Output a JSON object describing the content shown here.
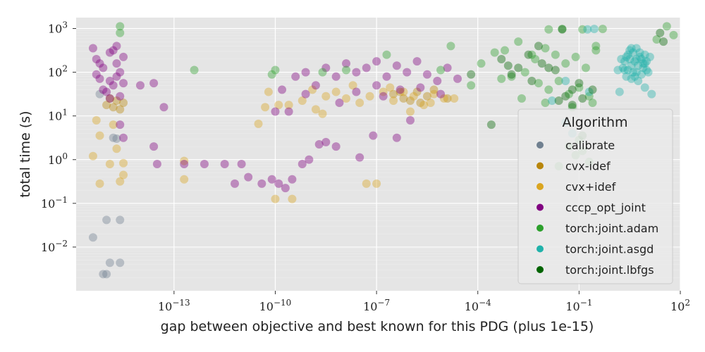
{
  "chart_data": {
    "type": "scatter",
    "xlabel": "gap between objective and best known for this PDG (plus 1e-15)",
    "ylabel": "total time (s)",
    "xscale": "log",
    "yscale": "log",
    "xlim_log10": [
      -15.9,
      2.0
    ],
    "ylim_log10": [
      -3.0,
      3.25
    ],
    "x_ticks": [
      {
        "log": -13,
        "label": "10",
        "exp": "−13"
      },
      {
        "log": -10,
        "label": "10",
        "exp": "−10"
      },
      {
        "log": -7,
        "label": "10",
        "exp": "−7"
      },
      {
        "log": -4,
        "label": "10",
        "exp": "−4"
      },
      {
        "log": -1,
        "label": "10",
        "exp": "−1"
      },
      {
        "log": 2,
        "label": "10",
        "exp": "2"
      }
    ],
    "y_ticks": [
      {
        "log": 3,
        "label": "10",
        "exp": "3"
      },
      {
        "log": 2,
        "label": "10",
        "exp": "2"
      },
      {
        "log": 1,
        "label": "10",
        "exp": "1"
      },
      {
        "log": 0,
        "label": "10",
        "exp": "0"
      },
      {
        "log": -1,
        "label": "10",
        "exp": "−1"
      },
      {
        "log": -2,
        "label": "10",
        "exp": "−2"
      }
    ],
    "grid": true,
    "background": "#e5e5e5",
    "legend": {
      "title": "Algorithm",
      "placement": "lower right",
      "entries": [
        {
          "name": "calibrate",
          "color": "#708090"
        },
        {
          "name": "cvx-idef",
          "color": "#b8860b"
        },
        {
          "name": "cvx+idef",
          "color": "#daa520"
        },
        {
          "name": "cccp_opt_joint",
          "color": "#800080"
        },
        {
          "name": "torch:joint.adam",
          "color": "#2ca02c"
        },
        {
          "name": "torch:joint.asgd",
          "color": "#20b2aa"
        },
        {
          "name": "torch:joint.lbfgs",
          "color": "#006400"
        }
      ]
    },
    "series": [
      {
        "name": "calibrate",
        "color": "#708090",
        "points_log10": [
          [
            -15.0,
            -2.62
          ],
          [
            -15.1,
            -2.62
          ],
          [
            -14.9,
            -2.36
          ],
          [
            -14.6,
            -2.36
          ],
          [
            -15.0,
            -1.38
          ],
          [
            -14.6,
            -1.38
          ],
          [
            -15.4,
            -1.78
          ],
          [
            -14.8,
            0.5
          ],
          [
            -14.7,
            0.48
          ],
          [
            -15.2,
            1.5
          ]
        ]
      },
      {
        "name": "cvx-idef",
        "color": "#b8860b",
        "points_log10": [
          [
            -14.8,
            1.2
          ],
          [
            -14.5,
            1.3
          ],
          [
            -15.0,
            1.25
          ],
          [
            -14.7,
            1.35
          ],
          [
            -14.9,
            1.4
          ],
          [
            -14.6,
            1.15
          ],
          [
            -6.5,
            1.5
          ],
          [
            -6.2,
            1.4
          ],
          [
            -5.8,
            1.55
          ],
          [
            -5.5,
            1.45
          ],
          [
            -6.0,
            1.35
          ],
          [
            -5.3,
            1.6
          ],
          [
            -4.9,
            1.4
          ],
          [
            -5.7,
            1.3
          ],
          [
            -6.3,
            1.55
          ]
        ]
      },
      {
        "name": "cvx+idef",
        "color": "#daa520",
        "points_log10": [
          [
            -15.4,
            0.08
          ],
          [
            -15.2,
            -0.55
          ],
          [
            -14.6,
            -0.5
          ],
          [
            -14.5,
            -0.35
          ],
          [
            -14.7,
            0.25
          ],
          [
            -14.8,
            0.8
          ],
          [
            -15.2,
            0.55
          ],
          [
            -14.9,
            -0.1
          ],
          [
            -14.5,
            -0.08
          ],
          [
            -15.3,
            0.9
          ],
          [
            -12.7,
            -0.03
          ],
          [
            -12.7,
            -0.45
          ],
          [
            -10.0,
            -0.9
          ],
          [
            -9.5,
            -0.9
          ],
          [
            -10.5,
            0.82
          ],
          [
            -10.2,
            1.55
          ],
          [
            -9.6,
            1.25
          ],
          [
            -9.2,
            1.35
          ],
          [
            -8.8,
            1.15
          ],
          [
            -8.5,
            1.45
          ],
          [
            -8.2,
            1.55
          ],
          [
            -7.9,
            1.4
          ],
          [
            -7.5,
            1.3
          ],
          [
            -7.2,
            1.45
          ],
          [
            -6.8,
            1.55
          ],
          [
            -6.5,
            1.35
          ],
          [
            -6.2,
            1.55
          ],
          [
            -5.9,
            1.45
          ],
          [
            -5.6,
            1.25
          ],
          [
            -5.3,
            1.5
          ],
          [
            -5.0,
            1.4
          ],
          [
            -7.3,
            -0.55
          ],
          [
            -7.0,
            -0.55
          ],
          [
            -9.9,
            1.25
          ],
          [
            -10.3,
            1.2
          ],
          [
            -8.6,
            1.05
          ],
          [
            -6.0,
            1.1
          ],
          [
            -5.4,
            1.3
          ],
          [
            -4.7,
            1.4
          ],
          [
            -7.7,
            1.7
          ],
          [
            -8.9,
            1.6
          ],
          [
            -6.6,
            1.65
          ]
        ]
      },
      {
        "name": "cccp_opt_joint",
        "color": "#800080",
        "points_log10": [
          [
            -15.3,
            2.3
          ],
          [
            -15.1,
            2.1
          ],
          [
            -14.9,
            2.45
          ],
          [
            -14.7,
            2.2
          ],
          [
            -15.2,
            1.85
          ],
          [
            -14.8,
            1.7
          ],
          [
            -14.6,
            2.0
          ],
          [
            -15.0,
            1.55
          ],
          [
            -14.5,
            2.35
          ],
          [
            -15.4,
            2.55
          ],
          [
            -14.9,
            1.4
          ],
          [
            -14.7,
            2.6
          ],
          [
            -15.1,
            1.6
          ],
          [
            -14.6,
            1.45
          ],
          [
            -14.8,
            2.5
          ],
          [
            -15.3,
            1.95
          ],
          [
            -14.9,
            1.8
          ],
          [
            -14.5,
            1.75
          ],
          [
            -15.2,
            2.2
          ],
          [
            -14.7,
            1.9
          ],
          [
            -14.6,
            0.8
          ],
          [
            -14.5,
            0.5
          ],
          [
            -14.0,
            1.7
          ],
          [
            -13.6,
            1.75
          ],
          [
            -13.6,
            0.3
          ],
          [
            -13.3,
            1.2
          ],
          [
            -13.5,
            -0.1
          ],
          [
            -12.7,
            -0.1
          ],
          [
            -12.1,
            -0.1
          ],
          [
            -11.5,
            -0.1
          ],
          [
            -11.0,
            -0.1
          ],
          [
            -11.2,
            -0.55
          ],
          [
            -10.8,
            -0.4
          ],
          [
            -10.4,
            -0.55
          ],
          [
            -10.1,
            -0.45
          ],
          [
            -9.9,
            -0.55
          ],
          [
            -9.7,
            -0.65
          ],
          [
            -9.5,
            -0.45
          ],
          [
            -9.2,
            -0.1
          ],
          [
            -9.0,
            0.0
          ],
          [
            -8.7,
            0.35
          ],
          [
            -8.5,
            0.4
          ],
          [
            -9.8,
            1.6
          ],
          [
            -10.0,
            1.1
          ],
          [
            -9.6,
            1.1
          ],
          [
            -9.4,
            1.9
          ],
          [
            -9.1,
            2.0
          ],
          [
            -8.8,
            1.7
          ],
          [
            -8.5,
            2.1
          ],
          [
            -8.2,
            1.9
          ],
          [
            -7.9,
            2.2
          ],
          [
            -7.6,
            2.0
          ],
          [
            -7.3,
            2.1
          ],
          [
            -7.0,
            2.25
          ],
          [
            -6.7,
            1.9
          ],
          [
            -6.4,
            2.15
          ],
          [
            -6.1,
            2.0
          ],
          [
            -5.8,
            2.25
          ],
          [
            -5.5,
            1.95
          ],
          [
            -5.2,
            1.8
          ],
          [
            -4.9,
            2.1
          ],
          [
            -4.6,
            1.85
          ],
          [
            -7.6,
            1.55
          ],
          [
            -7.0,
            1.7
          ],
          [
            -6.3,
            1.6
          ],
          [
            -5.7,
            1.65
          ],
          [
            -5.1,
            1.5
          ],
          [
            -8.2,
            0.3
          ],
          [
            -7.5,
            0.05
          ],
          [
            -6.4,
            0.5
          ],
          [
            -6.0,
            0.9
          ],
          [
            -7.1,
            0.55
          ],
          [
            -8.1,
            1.3
          ],
          [
            -6.8,
            1.45
          ],
          [
            -9.1,
            1.5
          ]
        ]
      },
      {
        "name": "torch:joint.adam",
        "color": "#2ca02c",
        "points_log10": [
          [
            -14.6,
            3.05
          ],
          [
            -14.6,
            2.9
          ],
          [
            -12.4,
            2.05
          ],
          [
            -10.0,
            2.05
          ],
          [
            -10.1,
            1.95
          ],
          [
            -8.6,
            2.0
          ],
          [
            -7.9,
            2.05
          ],
          [
            -6.7,
            2.4
          ],
          [
            -5.1,
            2.05
          ],
          [
            -4.2,
            1.7
          ],
          [
            -4.8,
            2.6
          ],
          [
            -3.9,
            2.2
          ],
          [
            -3.5,
            2.45
          ],
          [
            -3.2,
            2.5
          ],
          [
            -2.8,
            2.7
          ],
          [
            -2.4,
            2.4
          ],
          [
            -2.0,
            2.55
          ],
          [
            -1.7,
            2.4
          ],
          [
            -1.4,
            2.2
          ],
          [
            -1.1,
            2.35
          ],
          [
            -0.8,
            2.1
          ],
          [
            -0.5,
            2.5
          ],
          [
            -3.0,
            1.9
          ],
          [
            -2.6,
            2.0
          ],
          [
            -2.2,
            1.75
          ],
          [
            -1.9,
            1.6
          ],
          [
            -1.6,
            1.8
          ],
          [
            -1.3,
            1.5
          ],
          [
            -1.0,
            1.65
          ],
          [
            -0.7,
            1.45
          ],
          [
            -1.5,
            2.99
          ],
          [
            -1.9,
            2.98
          ],
          [
            -0.3,
            2.99
          ],
          [
            -0.9,
            2.98
          ],
          [
            -2.7,
            1.4
          ],
          [
            -2.0,
            1.3
          ],
          [
            -1.2,
            1.2
          ],
          [
            -0.6,
            1.3
          ],
          [
            -3.3,
            1.85
          ],
          [
            1.6,
            3.05
          ],
          [
            1.8,
            2.85
          ],
          [
            1.3,
            2.75
          ],
          [
            -1.0,
            0.45
          ],
          [
            -1.3,
            0.3
          ],
          [
            -0.9,
            0.2
          ],
          [
            -1.6,
            -0.15
          ],
          [
            -0.7,
            -0.05
          ],
          [
            -1.1,
            0.1
          ],
          [
            -0.5,
            2.6
          ],
          [
            -2.3,
            2.3
          ]
        ]
      },
      {
        "name": "torch:joint.asgd",
        "color": "#20b2aa",
        "points_log10": [
          [
            0.3,
            2.1
          ],
          [
            0.5,
            2.3
          ],
          [
            0.7,
            2.0
          ],
          [
            0.9,
            2.2
          ],
          [
            0.4,
            1.9
          ],
          [
            0.6,
            2.45
          ],
          [
            0.8,
            2.35
          ],
          [
            1.0,
            2.05
          ],
          [
            0.35,
            2.25
          ],
          [
            0.55,
            1.85
          ],
          [
            0.75,
            2.15
          ],
          [
            0.95,
            2.4
          ],
          [
            0.45,
            2.05
          ],
          [
            0.65,
            2.25
          ],
          [
            0.85,
            1.95
          ],
          [
            0.5,
            2.5
          ],
          [
            0.7,
            2.3
          ],
          [
            0.9,
            2.1
          ],
          [
            0.4,
            2.35
          ],
          [
            0.6,
            2.0
          ],
          [
            0.8,
            2.45
          ],
          [
            1.0,
            2.25
          ],
          [
            0.35,
            2.05
          ],
          [
            0.55,
            2.15
          ],
          [
            0.75,
            1.8
          ],
          [
            0.95,
            2.2
          ],
          [
            0.45,
            2.4
          ],
          [
            0.65,
            1.9
          ],
          [
            0.85,
            2.3
          ],
          [
            0.55,
            2.55
          ],
          [
            1.15,
            1.5
          ],
          [
            0.2,
            1.55
          ],
          [
            0.95,
            1.65
          ],
          [
            -0.75,
            2.98
          ],
          [
            -0.55,
            2.99
          ],
          [
            -1.4,
            1.8
          ],
          [
            -0.7,
            1.55
          ],
          [
            -1.8,
            1.35
          ],
          [
            -1.4,
            0.85
          ],
          [
            -1.2,
            0.6
          ],
          [
            0.15,
            2.05
          ],
          [
            0.25,
            2.3
          ],
          [
            1.1,
            2.35
          ],
          [
            1.05,
            2.0
          ],
          [
            0.7,
            2.55
          ]
        ]
      },
      {
        "name": "torch:joint.lbfgs",
        "color": "#006400",
        "points_log10": [
          [
            -4.2,
            1.95
          ],
          [
            -3.3,
            2.3
          ],
          [
            -2.8,
            2.1
          ],
          [
            -2.5,
            2.4
          ],
          [
            -2.1,
            2.2
          ],
          [
            -1.7,
            2.05
          ],
          [
            -1.4,
            1.45
          ],
          [
            -1.0,
            1.75
          ],
          [
            -0.6,
            1.6
          ],
          [
            -1.6,
            1.35
          ],
          [
            -1.2,
            1.25
          ],
          [
            -0.9,
            1.4
          ],
          [
            -3.0,
            1.95
          ],
          [
            -2.4,
            1.8
          ],
          [
            -1.9,
            2.1
          ],
          [
            -3.6,
            0.8
          ],
          [
            -1.5,
            2.98
          ],
          [
            1.4,
            2.9
          ],
          [
            1.5,
            2.7
          ],
          [
            -0.9,
            0.55
          ],
          [
            -2.2,
            2.6
          ],
          [
            -3.1,
            2.15
          ],
          [
            -1.2,
            1.6
          ]
        ]
      }
    ]
  }
}
